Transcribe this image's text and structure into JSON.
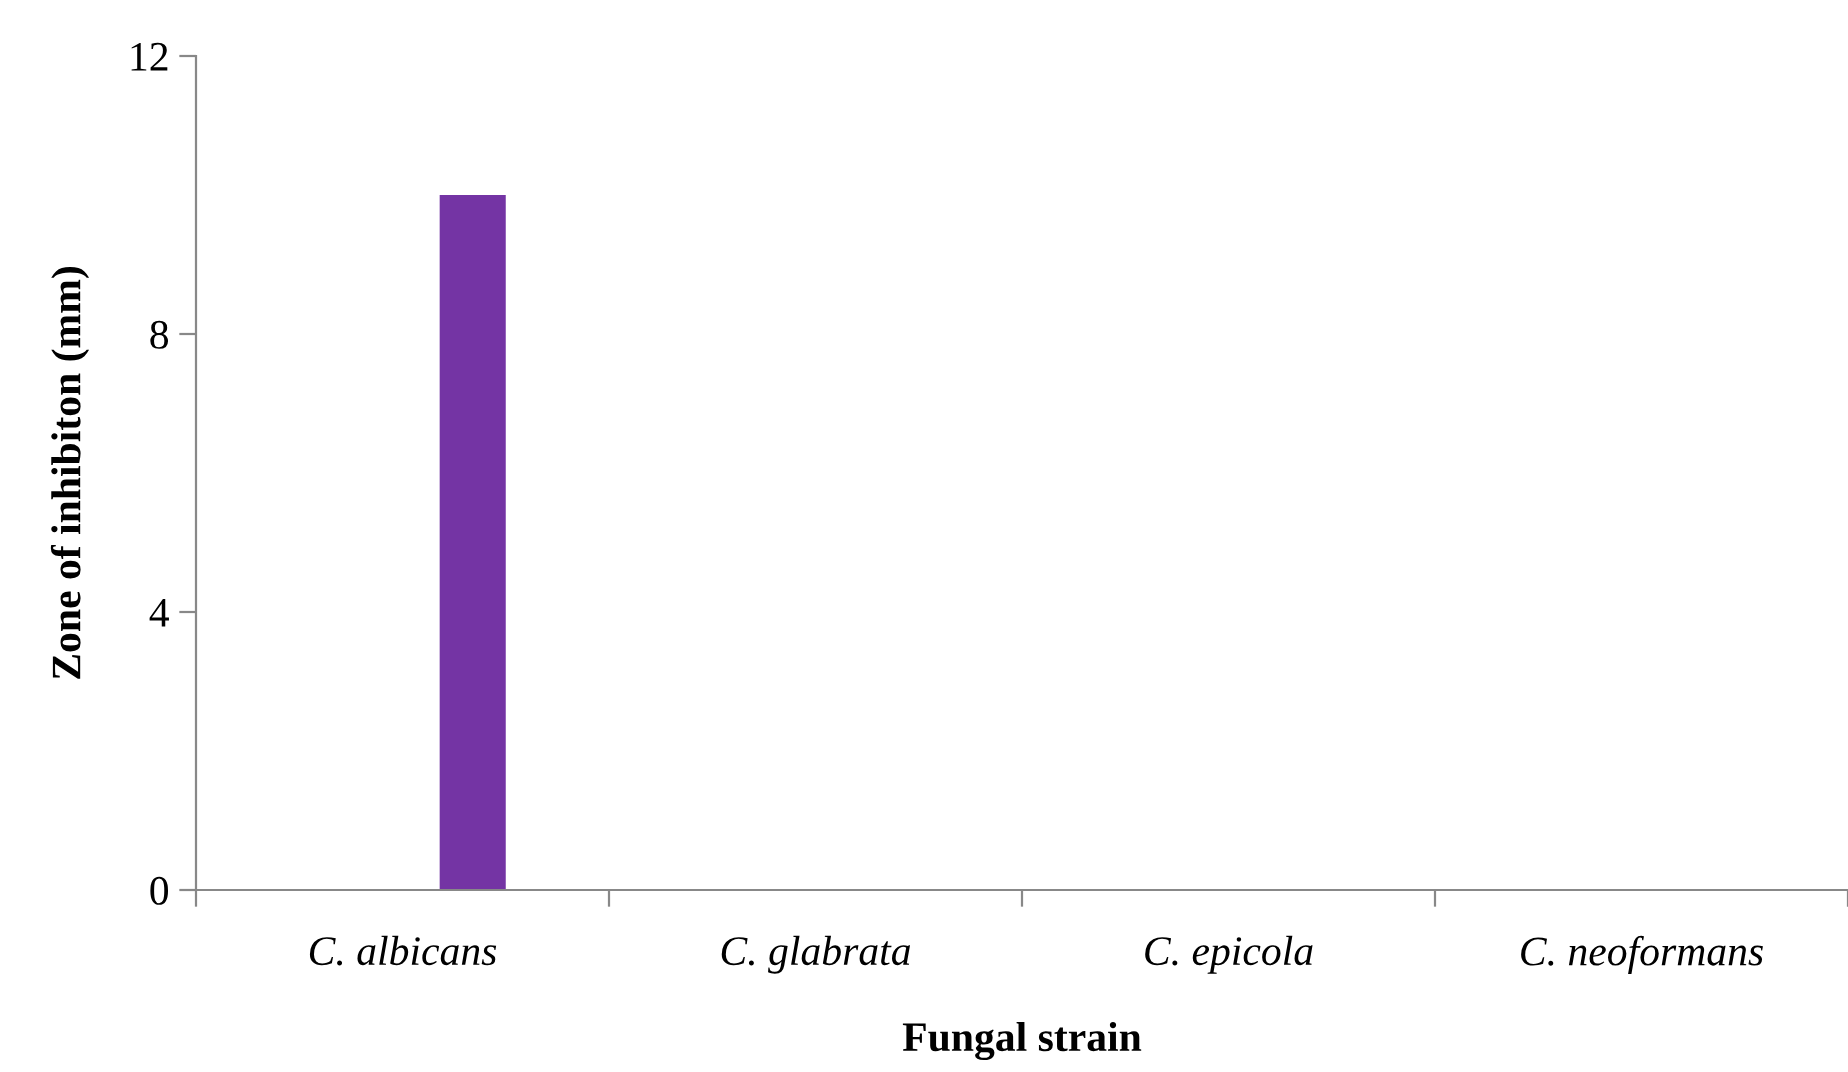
{
  "chart_data": {
    "type": "bar",
    "xlabel": "Fungal strain",
    "ylabel": "Zone of inhibiton (mm)",
    "categories": [
      "C. albicans",
      "C. glabrata",
      "C. epicola",
      "C. neoformans"
    ],
    "values": [
      10,
      0,
      0,
      0
    ],
    "color": "#7434a4",
    "ylim": [
      0,
      12
    ],
    "yticks": [
      0,
      4,
      8,
      12
    ],
    "grid": false
  }
}
